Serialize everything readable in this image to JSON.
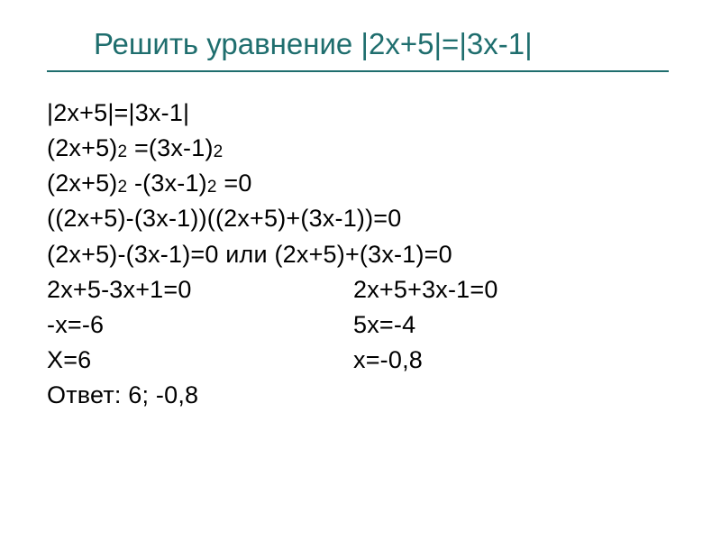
{
  "title": "Решить уравнение |2х+5|=|3х-1|",
  "title_color": "#1f6e6e",
  "underline_color": "#1f6e6e",
  "body_color": "#000000",
  "body_fontsize": 27,
  "title_fontsize": 33,
  "lines": {
    "l1": "|2х+5|=|3х-1|",
    "l2a": "(2х+5)",
    "l2b": " =(3х-1)",
    "l3a": "(2х+5)",
    "l3b": " -(3х-1)",
    "l3c": " =0",
    "l4": "((2х+5)-(3х-1))((2х+5)+(3х-1))=0",
    "l5": "(2х+5)-(3х-1)=0 или (2х+5)+(3х-1)=0",
    "l6_left": "2х+5-3х+1=0",
    "l6_right": "2х+5+3х-1=0",
    "l7_left": "-х=-6",
    "l7_right": " 5х=-4",
    "l8_left": "Х=6",
    "l8_right": "  х=-0,8",
    "l9": "Ответ: 6; -0,8"
  },
  "super": "2"
}
